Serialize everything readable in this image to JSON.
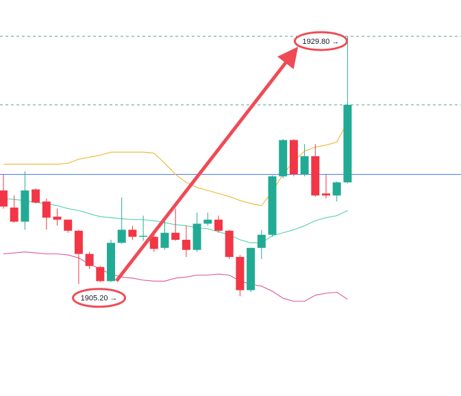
{
  "chart_data": {
    "type": "candlestick",
    "ylim": [
      1894.1,
      1933.4
    ],
    "up_color": "#22ab94",
    "down_color": "#f23645",
    "open": [
      1914.5,
      1912.8,
      1911.4,
      1914.6,
      1913.4,
      1911.9,
      1911.6,
      1910.5,
      1908.2,
      1906.9,
      1905.5,
      1909.3,
      1910.6,
      1909.9,
      1909.9,
      1908.8,
      1910.3,
      1909.6,
      1908.6,
      1911.2,
      1911.6,
      1910.5,
      1907.9,
      1904.6,
      1908.8,
      1910.1,
      1915.9,
      1919.5,
      1916.1,
      1917.9,
      1914.2,
      1914.0,
      1915.3
    ],
    "high": [
      1916.1,
      1914.0,
      1916.4,
      1914.7,
      1913.7,
      1912.7,
      1911.6,
      1910.6,
      1908.4,
      1907.0,
      1909.6,
      1913.8,
      1911.0,
      1912.0,
      1910.3,
      1911.6,
      1912.7,
      1911.0,
      1912.3,
      1912.3,
      1912.0,
      1910.6,
      1908.1,
      1908.8,
      1910.6,
      1916.0,
      1919.6,
      1919.6,
      1919.1,
      1919.1,
      1916.1,
      1915.4,
      1929.8
    ],
    "low": [
      1912.7,
      1911.3,
      1910.6,
      1913.2,
      1910.6,
      1911.0,
      1910.3,
      1905.2,
      1906.7,
      1905.4,
      1905.4,
      1909.2,
      1909.6,
      1909.5,
      1908.4,
      1908.6,
      1909.5,
      1907.9,
      1908.4,
      1911.0,
      1910.3,
      1907.7,
      1904.0,
      1904.4,
      1907.7,
      1909.9,
      1915.7,
      1915.9,
      1915.9,
      1913.9,
      1913.7,
      1913.4,
      1915.2
    ],
    "close": [
      1912.9,
      1911.4,
      1914.5,
      1913.3,
      1911.8,
      1911.6,
      1910.5,
      1908.2,
      1907.0,
      1905.5,
      1909.3,
      1910.6,
      1909.9,
      1910.0,
      1908.7,
      1910.3,
      1909.6,
      1908.6,
      1911.2,
      1911.6,
      1910.5,
      1907.9,
      1904.6,
      1908.8,
      1910.1,
      1915.9,
      1919.5,
      1916.1,
      1917.9,
      1914.0,
      1914.0,
      1915.3,
      1923.0
    ],
    "lines": [
      {
        "color": "#f0b429",
        "values": [
          1917.1,
          1917.1,
          1917.1,
          1917.1,
          1917.1,
          1917.1,
          1917.2,
          1917.6,
          1917.8,
          1918.0,
          1918.3,
          1918.3,
          1918.3,
          1918.3,
          1918.2,
          1917.2,
          1916.1,
          1915.3,
          1914.8,
          1914.5,
          1914.2,
          1913.9,
          1913.5,
          1913.2,
          1913.0,
          1914.4,
          1916.1,
          1917.4,
          1918.4,
          1918.8,
          1919.0,
          1919.3,
          1921.3
        ]
      },
      {
        "color": "#4fd1a5",
        "values": [
          1913.7,
          1913.6,
          1913.5,
          1913.3,
          1913.2,
          1913.0,
          1912.7,
          1912.5,
          1912.2,
          1911.9,
          1911.8,
          1911.7,
          1911.6,
          1911.6,
          1911.5,
          1911.3,
          1911.1,
          1911.0,
          1910.8,
          1910.7,
          1910.4,
          1910.1,
          1909.6,
          1909.3,
          1909.3,
          1910.0,
          1910.3,
          1910.6,
          1911.0,
          1911.5,
          1911.8,
          1912.0,
          1912.5
        ]
      },
      {
        "color": "#d9559a",
        "values": [
          1908.2,
          1908.3,
          1908.4,
          1908.3,
          1908.2,
          1908.2,
          1908.1,
          1907.8,
          1907.2,
          1906.7,
          1906.2,
          1905.9,
          1905.8,
          1905.6,
          1905.5,
          1905.5,
          1905.8,
          1905.9,
          1906.1,
          1906.1,
          1906.2,
          1906.1,
          1905.5,
          1905.2,
          1905.0,
          1904.5,
          1903.8,
          1903.5,
          1903.5,
          1904.1,
          1904.3,
          1904.4,
          1903.7
        ]
      }
    ],
    "hlines": [
      {
        "value": 1929.8,
        "color": "#2e8b7a",
        "dashed": true
      },
      {
        "value": 1923.0,
        "color": "#2e8b7a",
        "dashed": true
      },
      {
        "value": 1916.1,
        "color": "#2962ff",
        "dashed": false
      }
    ],
    "annotations": [
      {
        "value": 1905.2,
        "label": "1905.20 →",
        "index": 8,
        "side": "below"
      },
      {
        "value": 1929.8,
        "label": "1929.80 →",
        "index": 32,
        "side": "left"
      }
    ]
  }
}
